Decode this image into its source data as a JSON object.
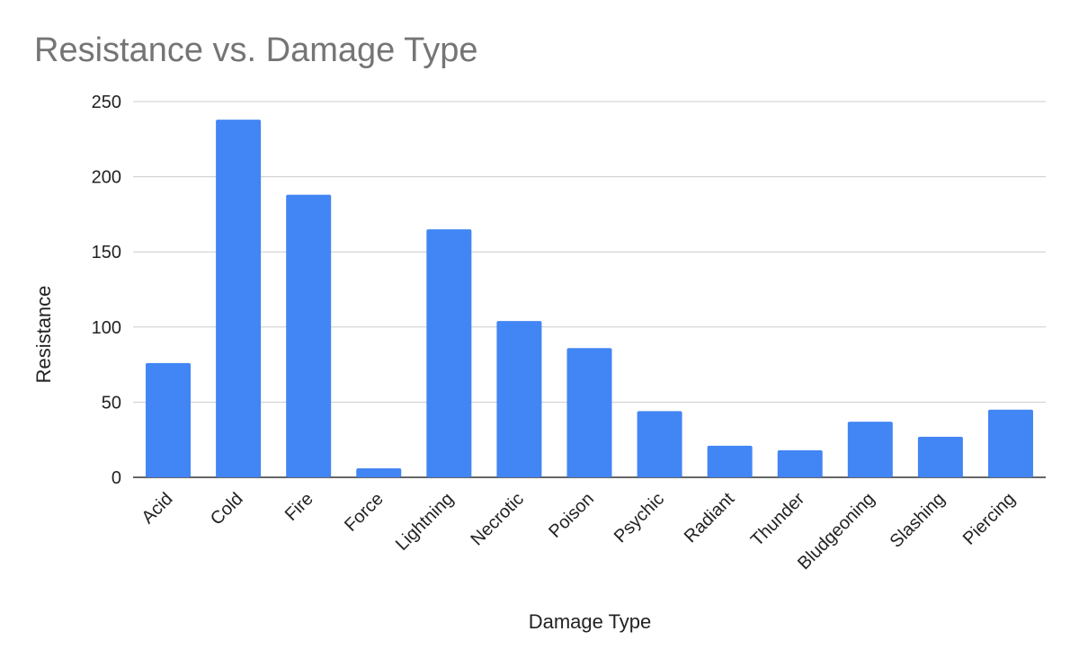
{
  "chart_data": {
    "type": "bar",
    "title": "Resistance vs. Damage Type",
    "xlabel": "Damage Type",
    "ylabel": "Resistance",
    "categories": [
      "Acid",
      "Cold",
      "Fire",
      "Force",
      "Lightning",
      "Necrotic",
      "Poison",
      "Psychic",
      "Radiant",
      "Thunder",
      "Bludgeoning",
      "Slashing",
      "Piercing"
    ],
    "values": [
      76,
      238,
      188,
      6,
      165,
      104,
      86,
      44,
      21,
      18,
      37,
      27,
      45
    ],
    "ylim": [
      0,
      250
    ],
    "yticks": [
      0,
      50,
      100,
      150,
      200,
      250
    ],
    "grid": true,
    "legend": "none",
    "bar_color": "#4285f4"
  }
}
